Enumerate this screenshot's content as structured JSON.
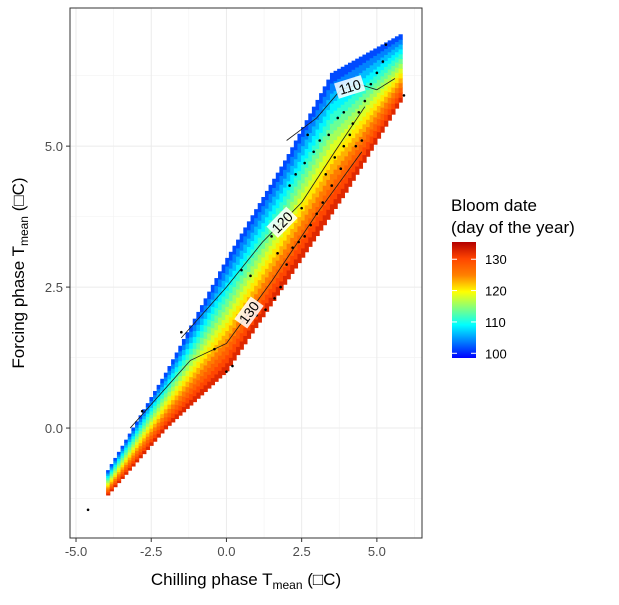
{
  "chart_data": {
    "type": "heatmap",
    "title": "",
    "xlabel": "Chilling phase T",
    "xlabel_subscript": "mean",
    "xlabel_unit": " (□C)",
    "ylabel": "Forcing phase T",
    "ylabel_subscript": "mean",
    "ylabel_unit": " (□C)",
    "xlim": [
      -5.2,
      6.5
    ],
    "ylim": [
      -1.95,
      7.45
    ],
    "x_ticks": [
      -5.0,
      -2.5,
      0.0,
      2.5,
      5.0
    ],
    "x_tick_labels": [
      "-5.0",
      "-2.5",
      "0.0",
      "2.5",
      "5.0"
    ],
    "y_ticks": [
      0.0,
      2.5,
      5.0
    ],
    "y_tick_labels": [
      "0.0",
      "2.5",
      "5.0"
    ],
    "grid": true,
    "band": {
      "centerline": [
        [
          -4.0,
          -1.0
        ],
        [
          -2.0,
          0.4
        ],
        [
          0.0,
          2.0
        ],
        [
          2.0,
          3.5
        ],
        [
          4.0,
          4.8
        ],
        [
          5.8,
          6.1
        ]
      ],
      "lower_edge": [
        [
          -3.8,
          -1.1
        ],
        [
          -2.0,
          0.0
        ],
        [
          0.0,
          1.0
        ],
        [
          2.0,
          2.6
        ],
        [
          4.0,
          4.2
        ],
        [
          5.8,
          5.8
        ]
      ],
      "upper_edge": [
        [
          -4.0,
          -0.8
        ],
        [
          -2.0,
          1.0
        ],
        [
          0.0,
          3.0
        ],
        [
          2.0,
          4.8
        ],
        [
          3.5,
          6.3
        ],
        [
          5.5,
          6.9
        ]
      ],
      "value_model": "bloom date increases toward the lower-right edge and decreases toward the upper-left edge"
    },
    "contours": [
      {
        "level": 110,
        "label": "110",
        "points": [
          [
            2.0,
            5.1
          ],
          [
            3.0,
            5.5
          ],
          [
            3.8,
            6.0
          ],
          [
            4.4,
            6.1
          ],
          [
            5.0,
            6.0
          ],
          [
            5.6,
            6.2
          ]
        ]
      },
      {
        "level": 120,
        "label": "120",
        "points": [
          [
            -1.5,
            1.6
          ],
          [
            0.0,
            2.5
          ],
          [
            1.2,
            3.3
          ],
          [
            2.5,
            4.0
          ],
          [
            3.6,
            4.9
          ],
          [
            4.6,
            5.7
          ]
        ]
      },
      {
        "level": 130,
        "label": "130",
        "points": [
          [
            -3.2,
            0.0
          ],
          [
            -1.2,
            1.2
          ],
          [
            0.0,
            1.5
          ],
          [
            1.5,
            2.6
          ],
          [
            3.0,
            3.8
          ],
          [
            4.5,
            4.9
          ]
        ]
      }
    ],
    "points": [
      [
        -4.6,
        -1.45
      ],
      [
        0.0,
        1.0
      ],
      [
        0.2,
        1.1
      ],
      [
        -0.4,
        1.4
      ],
      [
        0.5,
        2.8
      ],
      [
        0.8,
        2.7
      ],
      [
        1.0,
        2.0
      ],
      [
        1.3,
        2.1
      ],
      [
        1.6,
        2.3
      ],
      [
        1.8,
        2.5
      ],
      [
        2.0,
        2.9
      ],
      [
        2.2,
        3.2
      ],
      [
        2.4,
        3.3
      ],
      [
        2.6,
        3.4
      ],
      [
        2.8,
        3.6
      ],
      [
        3.0,
        3.8
      ],
      [
        3.2,
        4.0
      ],
      [
        3.3,
        4.5
      ],
      [
        3.5,
        4.3
      ],
      [
        3.6,
        4.8
      ],
      [
        3.8,
        4.6
      ],
      [
        3.9,
        5.0
      ],
      [
        4.1,
        5.2
      ],
      [
        4.2,
        5.4
      ],
      [
        4.4,
        5.6
      ],
      [
        4.6,
        5.8
      ],
      [
        4.8,
        6.1
      ],
      [
        5.0,
        6.3
      ],
      [
        5.2,
        6.5
      ],
      [
        5.3,
        6.8
      ],
      [
        5.9,
        5.9
      ],
      [
        1.7,
        3.1
      ],
      [
        1.9,
        3.6
      ],
      [
        2.1,
        4.3
      ],
      [
        2.3,
        4.5
      ],
      [
        2.6,
        4.7
      ],
      [
        2.9,
        4.9
      ],
      [
        3.1,
        5.1
      ],
      [
        3.4,
        5.2
      ],
      [
        1.5,
        3.4
      ],
      [
        3.7,
        5.5
      ],
      [
        4.3,
        5.0
      ],
      [
        2.5,
        3.9
      ],
      [
        -1.5,
        1.7
      ],
      [
        -2.8,
        0.3
      ],
      [
        2.7,
        5.2
      ],
      [
        3.9,
        5.6
      ],
      [
        4.5,
        5.1
      ]
    ],
    "legend": {
      "title_lines": [
        "Bloom date",
        "(day of the year)"
      ],
      "min": 98.5,
      "max": 135.5,
      "ticks": [
        100,
        110,
        120,
        130
      ],
      "tick_labels": [
        "100",
        "110",
        "120",
        "130"
      ],
      "colors": [
        "#0000ff",
        "#0080ff",
        "#00ffff",
        "#80ff80",
        "#ffff00",
        "#ff8000",
        "#ff4500",
        "#b30000"
      ],
      "placement": "right"
    }
  }
}
